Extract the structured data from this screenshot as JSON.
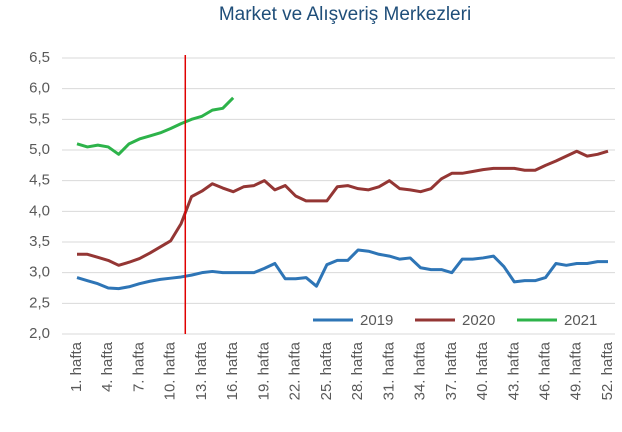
{
  "chart_data": {
    "type": "line",
    "title": "Market ve Alışveriş Merkezleri",
    "categories": [
      "1. hafta",
      null,
      null,
      "4. hafta",
      null,
      null,
      "7. hafta",
      null,
      null,
      "10. hafta",
      null,
      null,
      "13. hafta",
      null,
      null,
      "16. hafta",
      null,
      null,
      "19. hafta",
      null,
      null,
      "22. hafta",
      null,
      null,
      "25. hafta",
      null,
      null,
      "28. hafta",
      null,
      null,
      "31. hafta",
      null,
      null,
      "34. hafta",
      null,
      null,
      "37. hafta",
      null,
      null,
      "40. hafta",
      null,
      null,
      "43. hafta",
      null,
      null,
      "46. hafta",
      null,
      null,
      "49. hafta",
      null,
      null,
      "52. hafta"
    ],
    "series": [
      {
        "name": "2019",
        "color": "#2e75b6",
        "values": [
          2.92,
          2.87,
          2.82,
          2.75,
          2.74,
          2.77,
          2.82,
          2.86,
          2.89,
          2.91,
          2.93,
          2.96,
          3.0,
          3.02,
          3.0,
          3.0,
          3.0,
          3.0,
          3.07,
          3.15,
          2.9,
          2.9,
          2.92,
          2.78,
          3.13,
          3.2,
          3.2,
          3.37,
          3.35,
          3.3,
          3.27,
          3.22,
          3.24,
          3.08,
          3.05,
          3.05,
          3.0,
          3.22,
          3.22,
          3.24,
          3.27,
          3.1,
          2.85,
          2.87,
          2.87,
          2.92,
          3.15,
          3.12,
          3.15,
          3.15,
          3.18,
          3.18
        ]
      },
      {
        "name": "2020",
        "color": "#943634",
        "values": [
          3.3,
          3.3,
          3.25,
          3.2,
          3.12,
          3.17,
          3.23,
          3.32,
          3.42,
          3.52,
          3.8,
          4.24,
          4.33,
          4.45,
          4.38,
          4.32,
          4.4,
          4.42,
          4.5,
          4.35,
          4.42,
          4.25,
          4.17,
          4.17,
          4.17,
          4.4,
          4.42,
          4.37,
          4.35,
          4.4,
          4.5,
          4.37,
          4.35,
          4.32,
          4.37,
          4.53,
          4.62,
          4.62,
          4.65,
          4.68,
          4.7,
          4.7,
          4.7,
          4.67,
          4.67,
          4.75,
          4.82,
          4.9,
          4.98,
          4.9,
          4.93,
          4.98
        ]
      },
      {
        "name": "2021",
        "color": "#2db34a",
        "values": [
          5.1,
          5.05,
          5.08,
          5.05,
          4.93,
          5.1,
          5.18,
          5.23,
          5.28,
          5.35,
          5.43,
          5.5,
          5.55,
          5.65,
          5.68,
          5.85,
          null,
          null,
          null,
          null,
          null,
          null,
          null,
          null,
          null,
          null,
          null,
          null,
          null,
          null,
          null,
          null,
          null,
          null,
          null,
          null,
          null,
          null,
          null,
          null,
          null,
          null,
          null,
          null,
          null,
          null,
          null,
          null,
          null,
          null,
          null,
          null
        ]
      }
    ],
    "ylim": [
      2.0,
      6.5
    ],
    "yticks": [
      {
        "value": 2.0,
        "label": "2,0"
      },
      {
        "value": 2.5,
        "label": "2,5"
      },
      {
        "value": 3.0,
        "label": "3,0"
      },
      {
        "value": 3.5,
        "label": "3,5"
      },
      {
        "value": 4.0,
        "label": "4,0"
      },
      {
        "value": 4.5,
        "label": "4,5"
      },
      {
        "value": 5.0,
        "label": "5,0"
      },
      {
        "value": 5.5,
        "label": "5,5"
      },
      {
        "value": 6.0,
        "label": "6,0"
      },
      {
        "value": 6.5,
        "label": "6,5"
      }
    ],
    "grid": true,
    "legend": "bottom-right",
    "vline": {
      "x": 11.4,
      "color": "#e00000"
    }
  }
}
